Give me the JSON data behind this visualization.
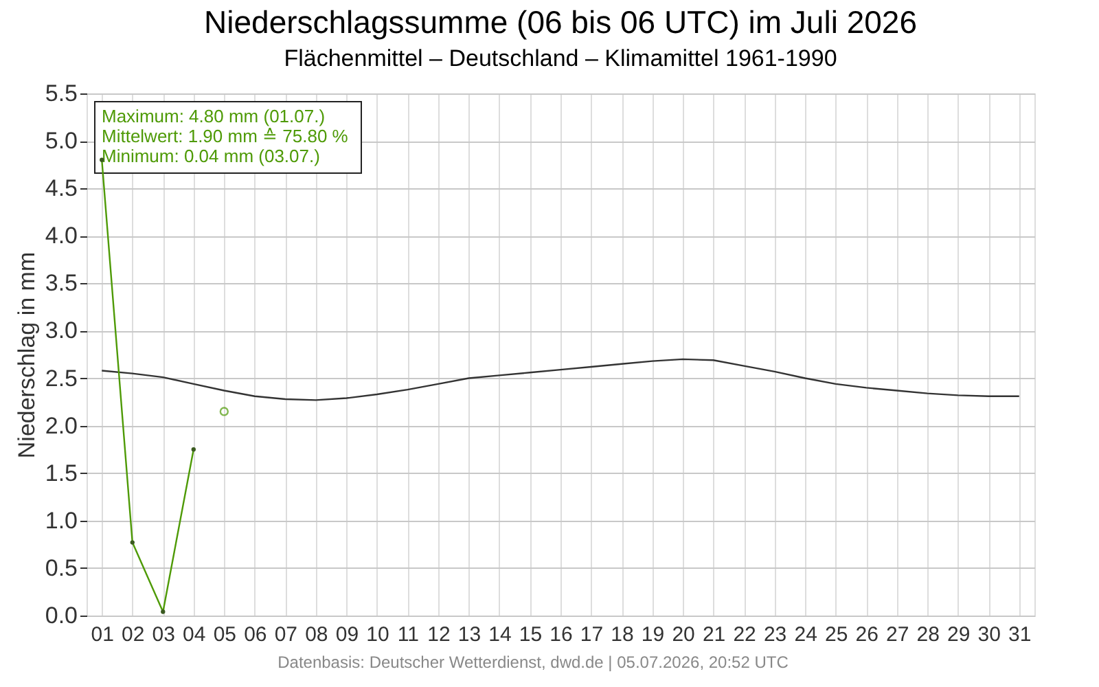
{
  "chart_data": {
    "type": "line",
    "title": "Niederschlagssumme (06 bis 06 UTC) im Juli 2026",
    "subtitle": "Flächenmittel – Deutschland – Klimamittel 1961-1990",
    "ylabel": "Niederschlag in mm",
    "categories": [
      "01",
      "02",
      "03",
      "04",
      "05",
      "06",
      "07",
      "08",
      "09",
      "10",
      "11",
      "12",
      "13",
      "14",
      "15",
      "16",
      "17",
      "18",
      "19",
      "20",
      "21",
      "22",
      "23",
      "24",
      "25",
      "26",
      "27",
      "28",
      "29",
      "30",
      "31"
    ],
    "series": [
      {
        "color": "#333333",
        "marker": "none",
        "values": [
          2.58,
          2.55,
          2.51,
          2.44,
          2.37,
          2.31,
          2.28,
          2.27,
          2.29,
          2.33,
          2.38,
          2.44,
          2.5,
          2.53,
          2.56,
          2.59,
          2.62,
          2.65,
          2.68,
          2.7,
          2.69,
          2.63,
          2.57,
          2.5,
          2.44,
          2.4,
          2.37,
          2.34,
          2.32,
          2.31,
          2.31
        ]
      },
      {
        "color": "#4e9a06",
        "marker": "circle",
        "values": [
          4.8,
          0.77,
          0.04,
          1.75,
          null,
          null,
          null,
          null,
          null,
          null,
          null,
          null,
          null,
          null,
          null,
          null,
          null,
          null,
          null,
          null,
          null,
          null,
          null,
          null,
          null,
          null,
          null,
          null,
          null,
          null,
          null
        ]
      },
      {
        "type": "scatter",
        "color": "#4e9a06",
        "marker": "circle",
        "values": [
          null,
          null,
          null,
          null,
          2.15,
          null,
          null,
          null,
          null,
          null,
          null,
          null,
          null,
          null,
          null,
          null,
          null,
          null,
          null,
          null,
          null,
          null,
          null,
          null,
          null,
          null,
          null,
          null,
          null,
          null,
          null
        ]
      }
    ],
    "ylim": [
      0,
      5.5
    ],
    "yticks": [
      {
        "value": 0,
        "label": "0.0"
      },
      0.5,
      {
        "value": 1,
        "label": "1.0"
      },
      1.5,
      {
        "value": 2,
        "label": "2.0"
      },
      2.5,
      {
        "value": 3,
        "label": "3.0"
      },
      3.5,
      {
        "value": 4,
        "label": "4.0"
      },
      4.5,
      {
        "value": 5,
        "label": "5.0"
      },
      5.5
    ],
    "grid": true,
    "annotations": [
      "Maximum: 4.80 mm  (01.07.)",
      "Mittelwert: 1.90 mm ≙ 75.80 %",
      "Minimum:  0.04 mm  (03.07.)",
      "Datenbasis: Deutscher Wetterdienst, dwd.de | 05.07.2026, 20:52 UTC"
    ]
  }
}
